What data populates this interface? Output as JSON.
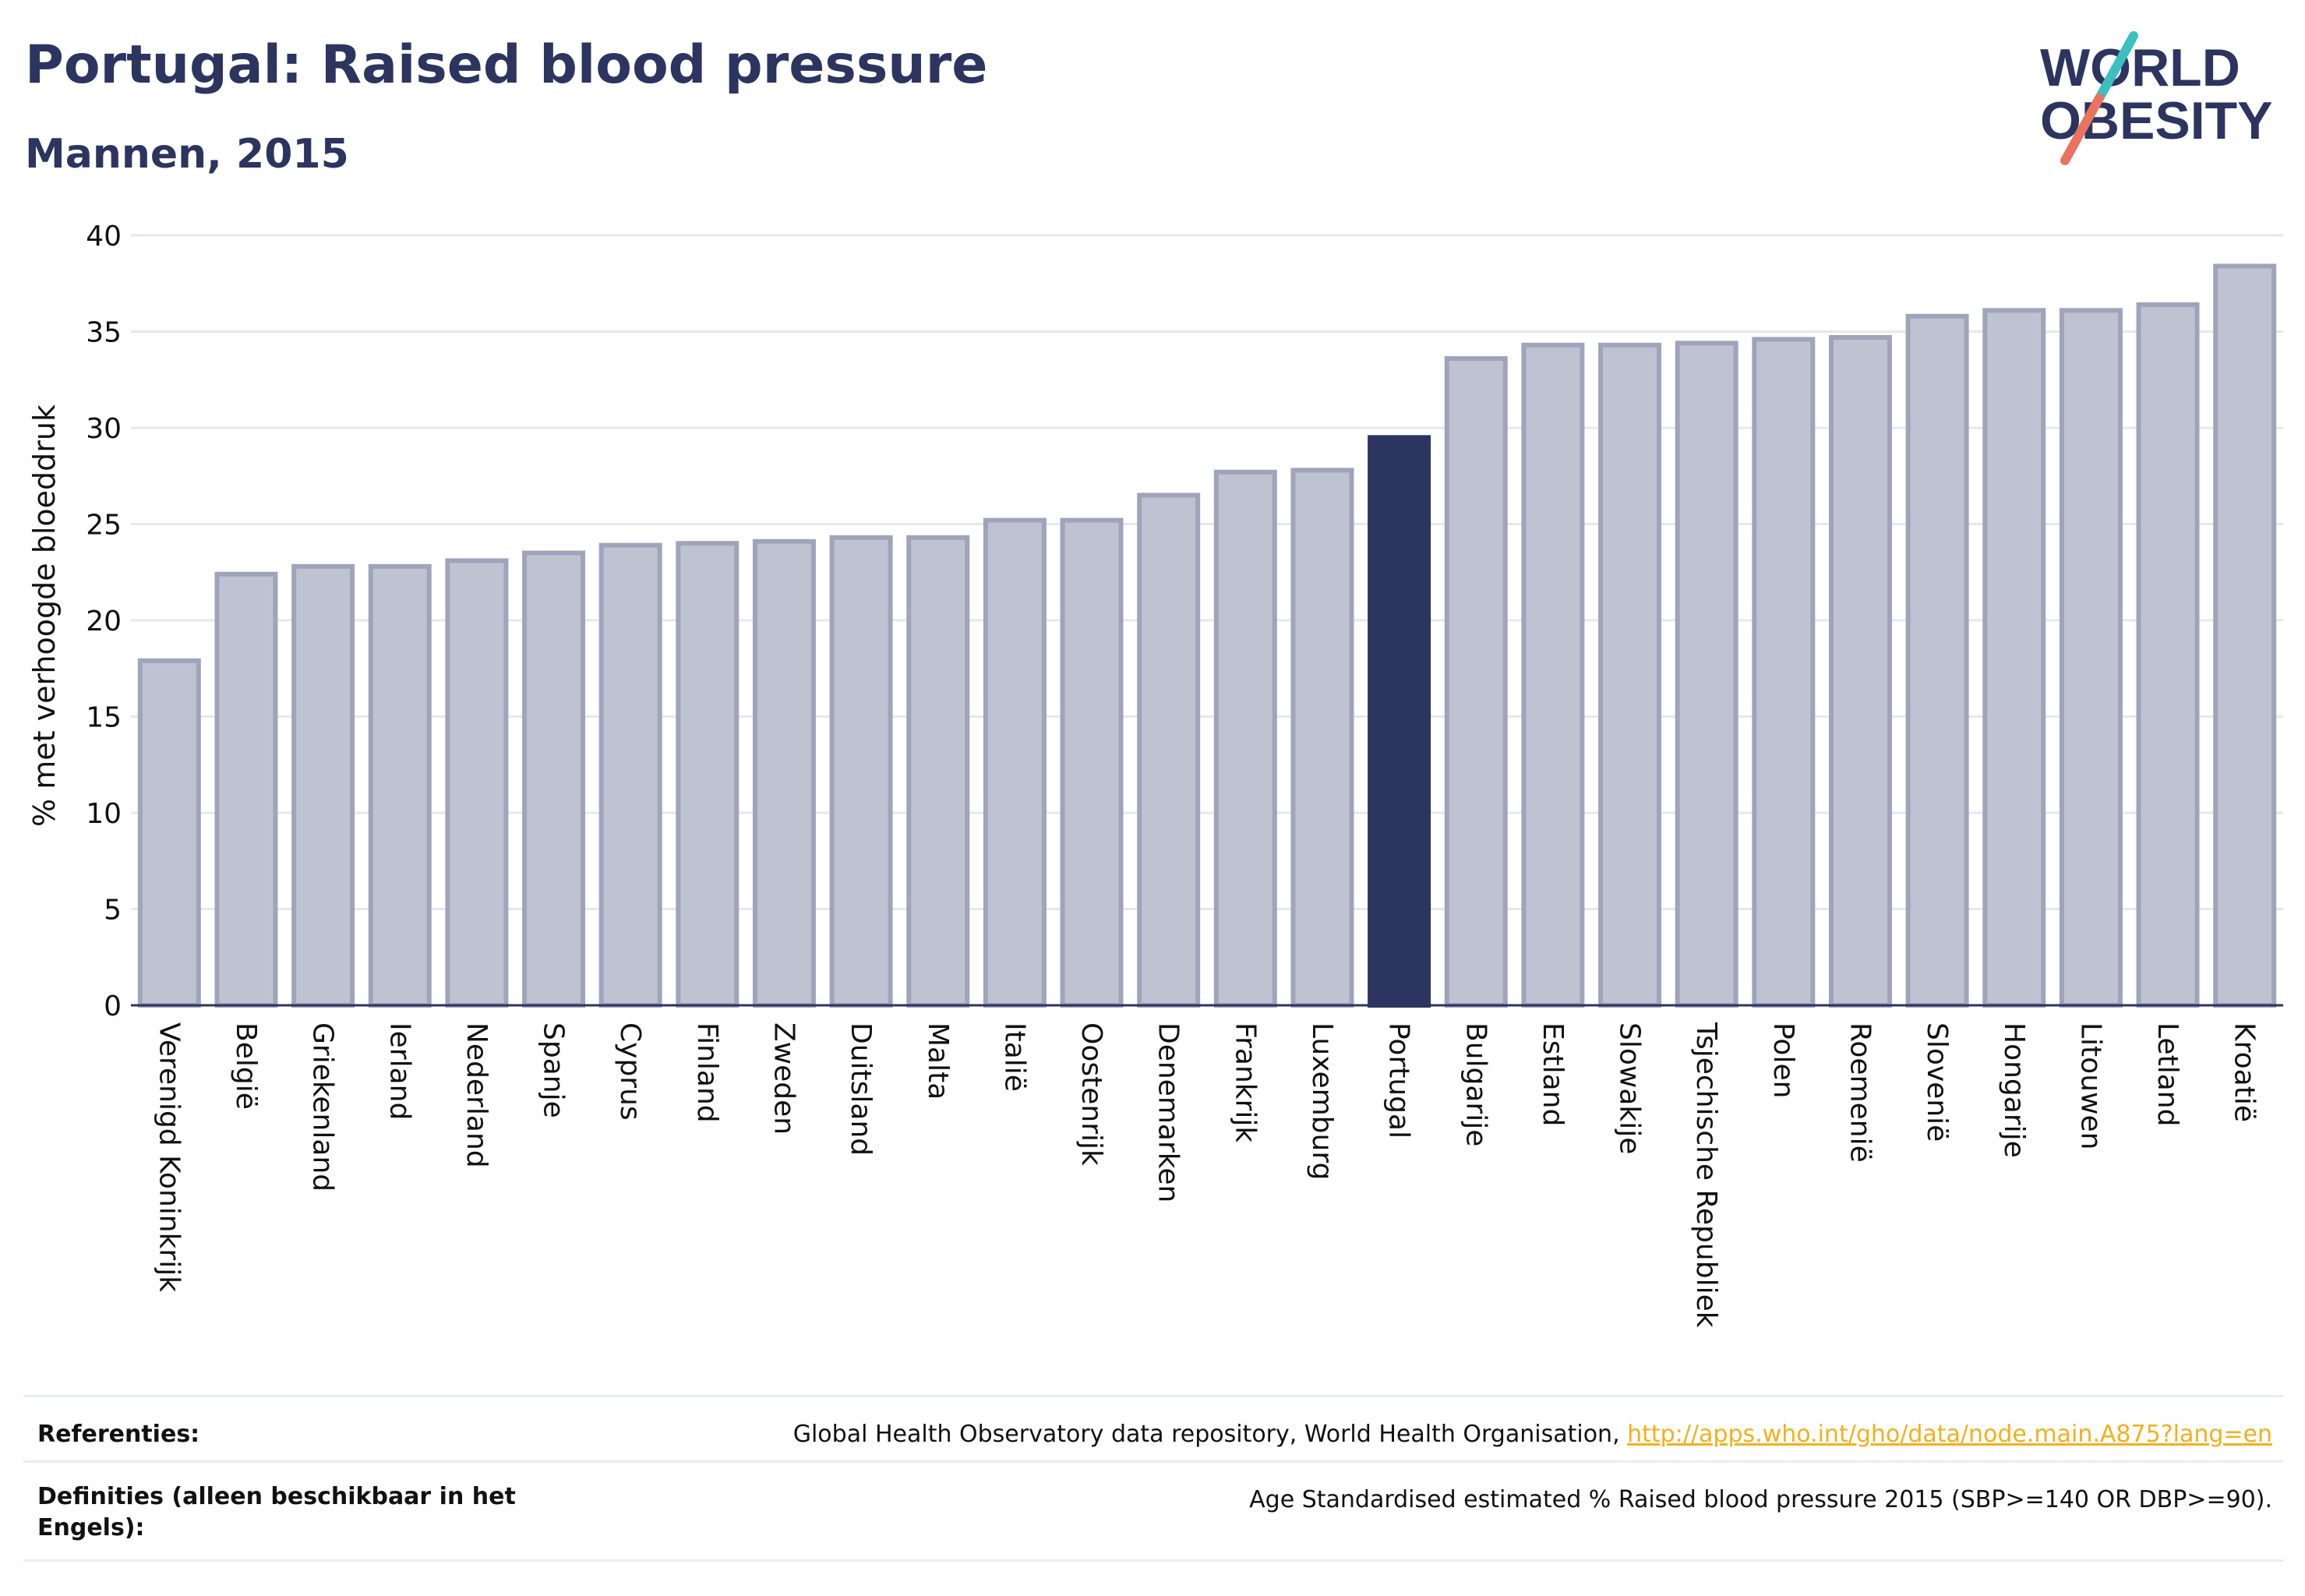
{
  "header": {
    "title": "Portugal: Raised blood pressure",
    "subtitle": "Mannen, 2015"
  },
  "logo": {
    "line1": "WORLD",
    "line2": "OBESITY"
  },
  "chart_data": {
    "type": "bar",
    "ylabel": "% met verhoogde bloeddruk",
    "ylim": [
      0,
      40
    ],
    "yticks": [
      0,
      5,
      10,
      15,
      20,
      25,
      30,
      35,
      40
    ],
    "grid": true,
    "highlight": "Portugal",
    "colors": {
      "bar": "#bfc2d0",
      "bar_border": "#9fa4bb",
      "highlight": "#2c3560",
      "grid": "#e6e8f0"
    },
    "categories": [
      "Verenigd Koninkrijk",
      "België",
      "Griekenland",
      "Ierland",
      "Nederland",
      "Spanje",
      "Cyprus",
      "Finland",
      "Zweden",
      "Duitsland",
      "Malta",
      "Italië",
      "Oostenrijk",
      "Denemarken",
      "Frankrijk",
      "Luxemburg",
      "Portugal",
      "Bulgarije",
      "Estland",
      "Slowakije",
      "Tsjechische Republiek",
      "Polen",
      "Roemenië",
      "Slovenië",
      "Hongarije",
      "Litouwen",
      "Letland",
      "Kroatië"
    ],
    "values": [
      17.9,
      22.4,
      22.8,
      22.8,
      23.1,
      23.5,
      23.9,
      24.0,
      24.1,
      24.3,
      24.3,
      25.2,
      25.2,
      26.5,
      27.7,
      27.8,
      29.5,
      33.6,
      34.3,
      34.3,
      34.4,
      34.6,
      34.7,
      35.8,
      36.1,
      36.1,
      36.4,
      38.4
    ]
  },
  "footer": {
    "references_label": "Referenties:",
    "references_text": "Global Health Observatory data repository, World Health Organisation, ",
    "references_link": "http://apps.who.int/gho/data/node.main.A875?lang=en",
    "definitions_label": "Definities (alleen beschikbaar in het Engels):",
    "definitions_text": "Age Standardised estimated % Raised blood pressure 2015 (SBP>=140 OR DBP>=90)."
  }
}
